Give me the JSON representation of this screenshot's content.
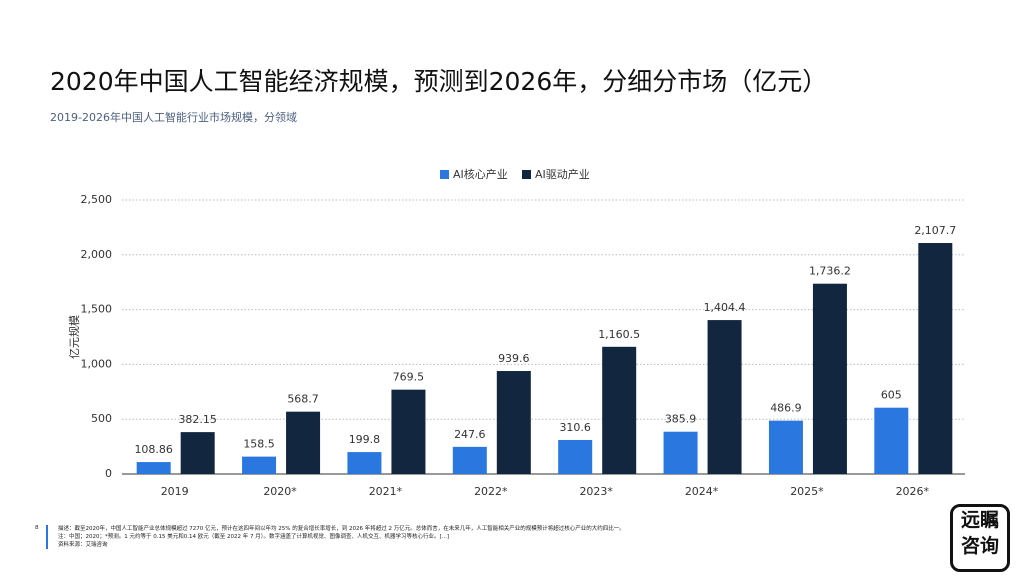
{
  "chart_data": {
    "type": "bar",
    "title": "2020年中国人工智能经济规模，预测到2026年，分细分市场（亿元）",
    "subtitle": "2019-2026年中国人工智能行业市场规模，分领域",
    "y_label": "亿元规模",
    "categories": [
      "2019",
      "2020*",
      "2021*",
      "2022*",
      "2023*",
      "2024*",
      "2025*",
      "2026*"
    ],
    "series": [
      {
        "name": "AI核心产业",
        "color": "#2a77e0",
        "values": [
          108.86,
          158.5,
          199.8,
          247.6,
          310.6,
          385.9,
          486.9,
          605
        ]
      },
      {
        "name": "AI驱动产业",
        "color": "#12263f",
        "values": [
          382.15,
          568.7,
          769.5,
          939.6,
          1160.5,
          1404.4,
          1736.2,
          2107.7
        ],
        "value_labels": [
          "382.15",
          "568.7",
          "769.5",
          "939.6",
          "1,160.5",
          "1,404.4",
          "1,736.2",
          "2,107.7"
        ]
      }
    ],
    "ylim": [
      0,
      2500
    ],
    "yticks": [
      0,
      500,
      {
        "value": 1000,
        "label": "1,000"
      },
      {
        "value": 1500,
        "label": "1,500"
      },
      {
        "value": 2000,
        "label": "2,000"
      },
      {
        "value": 2500,
        "label": "2,500"
      }
    ],
    "grid": true,
    "legend": "top"
  },
  "footer": {
    "page": "8",
    "description": "描述：截至2020年，中国人工智能产业总体规模超过 7270 亿元，预计在这四年间以年均 25% 的复合增长率增长，到 2026 年将超过 2 万亿元。总体而言，在未来几年，人工智能相关产业的规模预计将超过核心产业的大约四比一。",
    "note": "注：中国；2020；*预测。1 元约等于 0.15 美元和0.14 欧元（截至 2022 年 7 月）。数字涵盖了计算机视觉、图像调查、人机交互、机器学习等核心行业。[...]",
    "source": "资料来源：艾瑞咨询"
  },
  "logo": {
    "line1": "远瞩",
    "line2": "咨询"
  }
}
